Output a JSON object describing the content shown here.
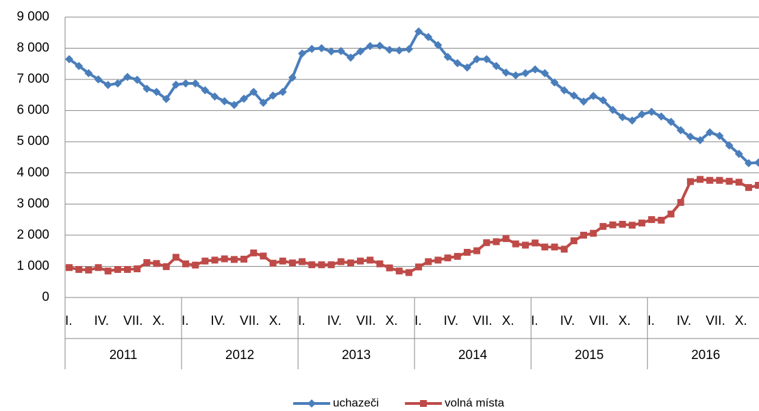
{
  "chart_data": {
    "type": "line",
    "categories": [
      "I.",
      null,
      null,
      "IV.",
      null,
      null,
      "VII.",
      null,
      null,
      "X.",
      null,
      null,
      "I.",
      null,
      null,
      "IV.",
      null,
      null,
      "VII.",
      null,
      null,
      "X.",
      null,
      null,
      "I.",
      null,
      null,
      "IV.",
      null,
      null,
      "VII.",
      null,
      null,
      "X.",
      null,
      null,
      "I.",
      null,
      null,
      "IV.",
      null,
      null,
      "VII.",
      null,
      null,
      "X.",
      null,
      null,
      "I.",
      null,
      null,
      "IV.",
      null,
      null,
      "VII.",
      null,
      null,
      "X.",
      null,
      null,
      "I.",
      null,
      null,
      "IV.",
      null,
      null,
      "VII.",
      null,
      null,
      "X.",
      null,
      null
    ],
    "years": [
      "2011",
      "2012",
      "2013",
      "2014",
      "2015",
      "2016"
    ],
    "series": [
      {
        "name": "uchazeči",
        "color": "#4a7ebb",
        "marker": "diamond",
        "values": [
          7650,
          7430,
          7200,
          7000,
          6820,
          6870,
          7080,
          6990,
          6700,
          6600,
          6370,
          6830,
          6870,
          6870,
          6650,
          6450,
          6300,
          6180,
          6380,
          6600,
          6250,
          6480,
          6600,
          7060,
          7830,
          7980,
          8000,
          7900,
          7910,
          7700,
          7900,
          8070,
          8080,
          7950,
          7930,
          7970,
          8540,
          8360,
          8100,
          7720,
          7520,
          7380,
          7650,
          7650,
          7430,
          7220,
          7130,
          7200,
          7320,
          7200,
          6900,
          6650,
          6480,
          6290,
          6470,
          6330,
          6020,
          5790,
          5680,
          5880,
          5960,
          5810,
          5640,
          5370,
          5160,
          5050,
          5300,
          5190,
          4880,
          4610,
          4310,
          4330
        ]
      },
      {
        "name": "volná místa",
        "color": "#be4b48",
        "marker": "square",
        "values": [
          960,
          900,
          880,
          960,
          850,
          900,
          900,
          920,
          1120,
          1090,
          990,
          1290,
          1080,
          1040,
          1170,
          1200,
          1240,
          1220,
          1230,
          1430,
          1330,
          1100,
          1170,
          1110,
          1150,
          1050,
          1050,
          1050,
          1150,
          1110,
          1170,
          1200,
          1080,
          950,
          850,
          800,
          980,
          1150,
          1200,
          1270,
          1320,
          1450,
          1500,
          1760,
          1790,
          1890,
          1720,
          1680,
          1750,
          1620,
          1620,
          1550,
          1820,
          2000,
          2060,
          2280,
          2330,
          2350,
          2320,
          2390,
          2500,
          2480,
          2680,
          3050,
          3720,
          3790,
          3760,
          3760,
          3730,
          3700,
          3530,
          3600
        ]
      }
    ],
    "ylim": [
      0,
      9000
    ],
    "yticks": [
      0,
      {
        "value": 1000,
        "label": "1 000"
      },
      {
        "value": 2000,
        "label": "2 000"
      },
      {
        "value": 3000,
        "label": "3 000"
      },
      {
        "value": 4000,
        "label": "4 000"
      },
      {
        "value": 5000,
        "label": "5 000"
      },
      {
        "value": 6000,
        "label": "6 000"
      },
      {
        "value": 7000,
        "label": "7 000"
      },
      {
        "value": 8000,
        "label": "8 000"
      },
      {
        "value": 9000,
        "label": "9 000"
      }
    ],
    "grid": true,
    "legend": "bottom"
  }
}
